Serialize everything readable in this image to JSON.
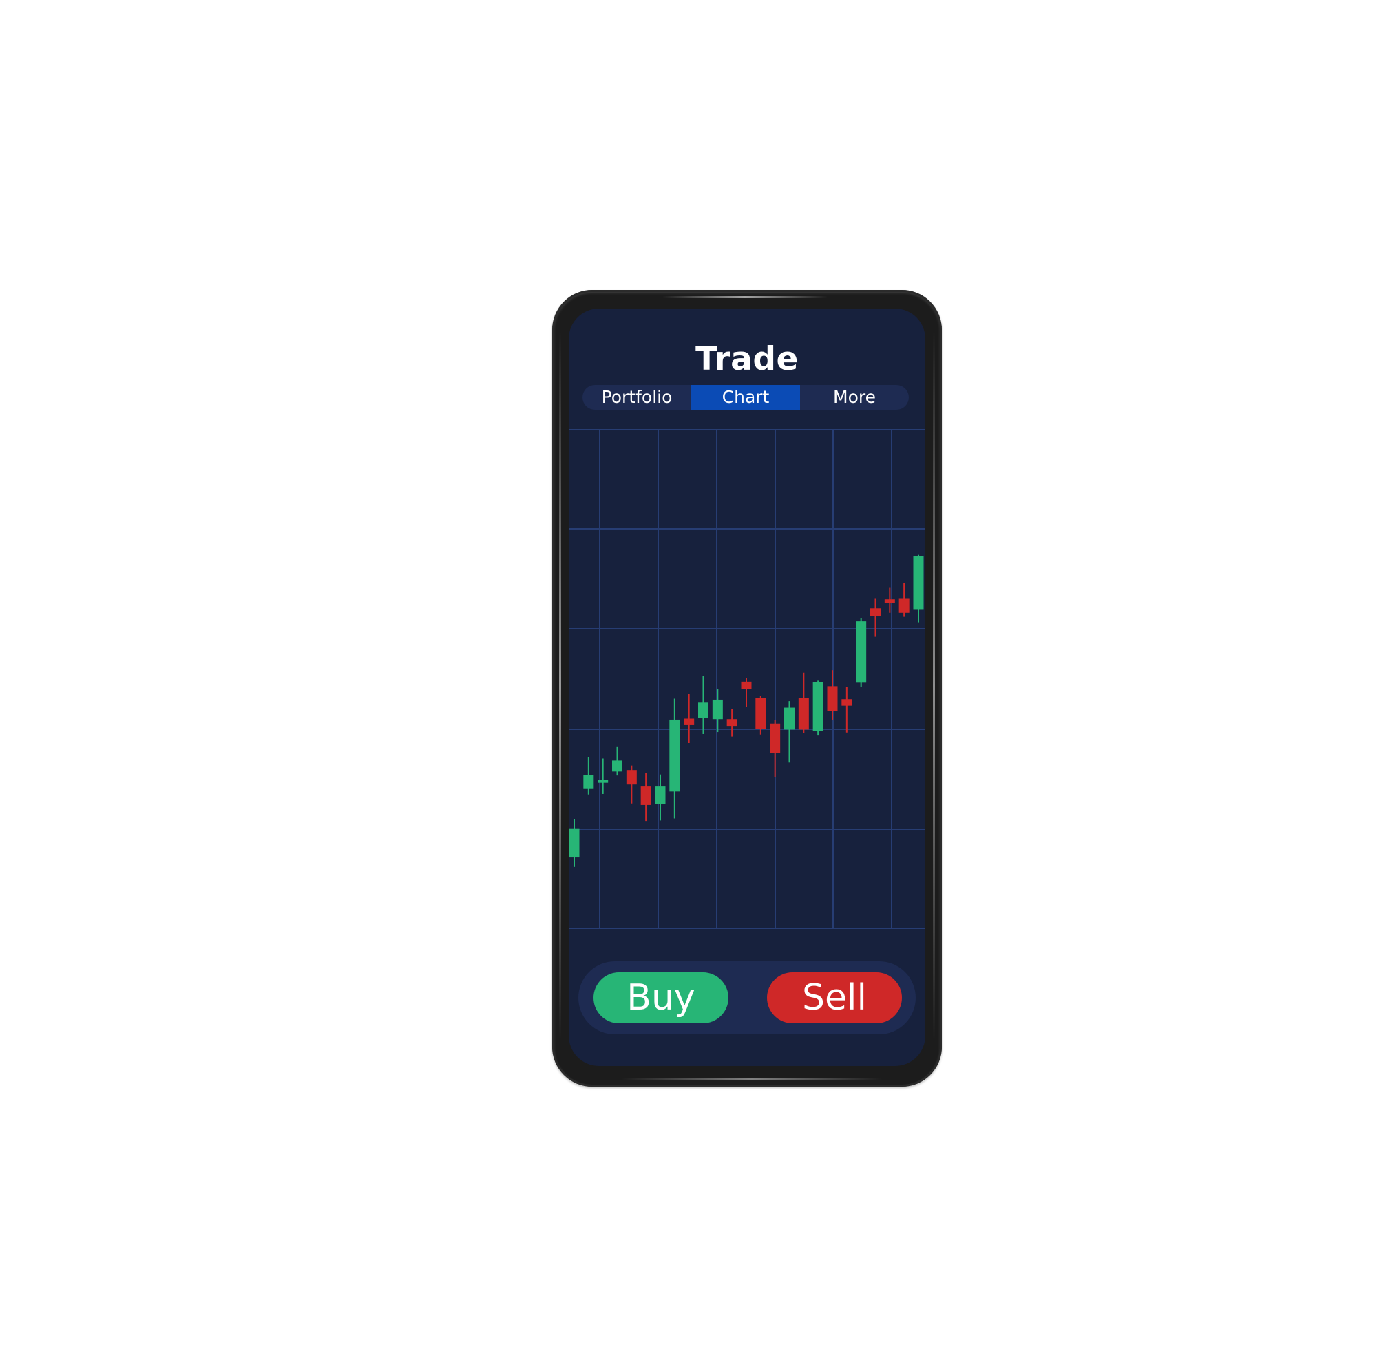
{
  "screen": {
    "title": "Trade"
  },
  "tabs": [
    {
      "label": "Portfolio",
      "active": false
    },
    {
      "label": "Chart",
      "active": true
    },
    {
      "label": "More",
      "active": false
    }
  ],
  "actions": {
    "buy_label": "Buy",
    "sell_label": "Sell"
  },
  "colors": {
    "screen_background": "#17213d",
    "panel": "#1e2b52",
    "active_tab": "#0b4bb5",
    "grid": "#273d73",
    "up": "#27b576",
    "down": "#cf2828",
    "buy": "#27b576",
    "sell": "#cf2828"
  },
  "chart_data": {
    "type": "candlestick",
    "grid": true,
    "candles": [
      {
        "open": 14.2,
        "close": 19.9,
        "high": 21.9,
        "low": 12.3
      },
      {
        "open": 27.9,
        "close": 30.7,
        "high": 34.3,
        "low": 26.8
      },
      {
        "open": 29.3,
        "close": 29.7,
        "high": 34.0,
        "low": 26.9
      },
      {
        "open": 31.4,
        "close": 33.6,
        "high": 36.3,
        "low": 30.6
      },
      {
        "open": 31.7,
        "close": 28.8,
        "high": 32.6,
        "low": 25.0
      },
      {
        "open": 28.4,
        "close": 24.7,
        "high": 31.1,
        "low": 21.5
      },
      {
        "open": 24.9,
        "close": 28.4,
        "high": 30.8,
        "low": 21.6
      },
      {
        "open": 27.4,
        "close": 41.8,
        "high": 46.0,
        "low": 22.0
      },
      {
        "open": 42.0,
        "close": 40.7,
        "high": 46.9,
        "low": 37.1
      },
      {
        "open": 42.1,
        "close": 45.2,
        "high": 50.5,
        "low": 38.9
      },
      {
        "open": 41.9,
        "close": 45.8,
        "high": 48.0,
        "low": 39.3
      },
      {
        "open": 41.9,
        "close": 40.4,
        "high": 43.9,
        "low": 38.4
      },
      {
        "open": 49.4,
        "close": 48.0,
        "high": 50.2,
        "low": 44.4
      },
      {
        "open": 46.1,
        "close": 39.9,
        "high": 46.6,
        "low": 38.8
      },
      {
        "open": 41.0,
        "close": 35.1,
        "high": 41.7,
        "low": 30.2
      },
      {
        "open": 39.8,
        "close": 44.2,
        "high": 45.5,
        "low": 33.2
      },
      {
        "open": 46.1,
        "close": 39.8,
        "high": 51.2,
        "low": 39.1
      },
      {
        "open": 39.5,
        "close": 49.3,
        "high": 49.6,
        "low": 38.6
      },
      {
        "open": 48.5,
        "close": 43.5,
        "high": 51.7,
        "low": 41.8
      },
      {
        "open": 45.9,
        "close": 44.6,
        "high": 48.3,
        "low": 39.2
      },
      {
        "open": 49.2,
        "close": 61.5,
        "high": 62.1,
        "low": 48.4
      },
      {
        "open": 64.1,
        "close": 62.6,
        "high": 66.0,
        "low": 58.4
      },
      {
        "open": 65.9,
        "close": 65.2,
        "high": 68.2,
        "low": 63.2
      },
      {
        "open": 66.0,
        "close": 63.2,
        "high": 69.2,
        "low": 62.4
      },
      {
        "open": 63.8,
        "close": 74.6,
        "high": 74.8,
        "low": 61.3
      }
    ]
  }
}
